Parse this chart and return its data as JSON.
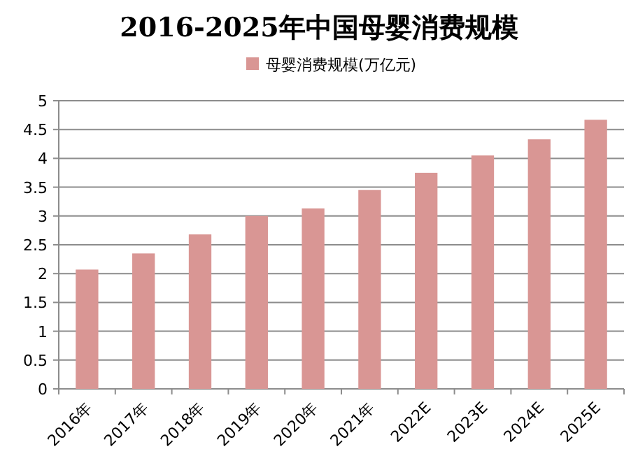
{
  "chart_data": {
    "type": "bar",
    "title": "2016-2025年中国母婴消费规模",
    "categories": [
      "2016年",
      "2017年",
      "2018年",
      "2019年",
      "2020年",
      "2021年",
      "2022E",
      "2023E",
      "2024E",
      "2025E"
    ],
    "series": [
      {
        "name": "母婴消费规模(万亿元)",
        "color": "#d99694",
        "values": [
          2.07,
          2.35,
          2.68,
          3.0,
          3.13,
          3.45,
          3.75,
          4.05,
          4.33,
          4.67
        ]
      }
    ],
    "ylim": [
      0,
      5
    ],
    "yticks": [
      0,
      0.5,
      1,
      1.5,
      2,
      2.5,
      3,
      3.5,
      4,
      4.5,
      5
    ],
    "grid": "y",
    "legend": "top"
  }
}
